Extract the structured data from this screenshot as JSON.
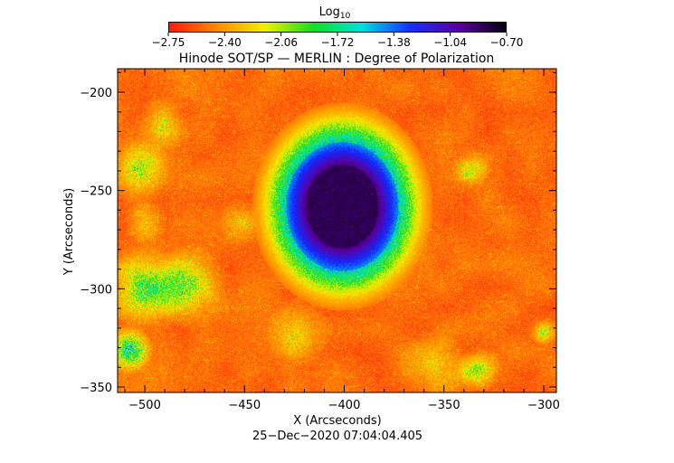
{
  "colorbar": {
    "label": "Log",
    "label_sub": "10",
    "ticks": [
      "−2.75",
      "−2.40",
      "−2.06",
      "−1.72",
      "−1.38",
      "−1.04",
      "−0.70"
    ],
    "colors": [
      "#ff1a0a",
      "#ff8a00",
      "#f0f000",
      "#10e020",
      "#00e0e0",
      "#1430ff",
      "#5a00a0",
      "#080010"
    ]
  },
  "plot": {
    "title": "Hinode SOT/SP — MERLIN : Degree of Polarization",
    "xlabel": "X (Arcseconds)",
    "ylabel": "Y (Arcseconds)",
    "timestamp": "25−Dec−2020 07:04:04.405",
    "x_ticks": [
      "−500",
      "−450",
      "−400",
      "−350",
      "−300"
    ],
    "y_ticks": [
      "−200",
      "−250",
      "−300",
      "−350"
    ]
  },
  "image": {
    "description_colors": {
      "background": "#ff4a12",
      "umbra": "#2a0838",
      "penumbra": "#2a20c0"
    }
  }
}
